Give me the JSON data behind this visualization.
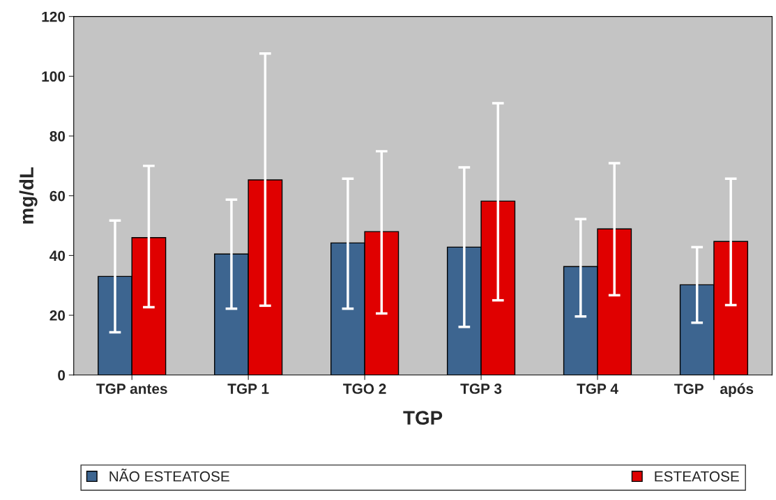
{
  "chart_data": {
    "type": "bar",
    "xlabel": "TGP",
    "ylabel": "mg/dL",
    "categories": [
      "TGP antes",
      "TGP 1",
      "TGO 2",
      "TGP 3",
      "TGP 4",
      "TGP    após"
    ],
    "series": [
      {
        "name": "NÃO ESTEATOSE",
        "color": "#3d6590",
        "values": [
          33,
          40.5,
          44.2,
          42.8,
          36.3,
          30.2
        ],
        "errors": [
          [
            14.3,
            51.7
          ],
          [
            22.2,
            58.7
          ],
          [
            22.2,
            65.7
          ],
          [
            16.1,
            69.5
          ],
          [
            19.6,
            52.2
          ],
          [
            17.5,
            42.8
          ]
        ]
      },
      {
        "name": "ESTEATOSE",
        "color": "#e00000",
        "values": [
          46,
          65.3,
          48,
          58.2,
          48.9,
          44.7
        ],
        "errors": [
          [
            22.7,
            70
          ],
          [
            23.2,
            107.6
          ],
          [
            20.6,
            74.9
          ],
          [
            25,
            91
          ],
          [
            26.7,
            70.9
          ],
          [
            23.4,
            65.7
          ]
        ]
      }
    ],
    "ylim": [
      0,
      120
    ],
    "yticks": [
      0,
      20,
      40,
      60,
      80,
      100,
      120
    ],
    "grid": false,
    "legend": "bottom"
  }
}
